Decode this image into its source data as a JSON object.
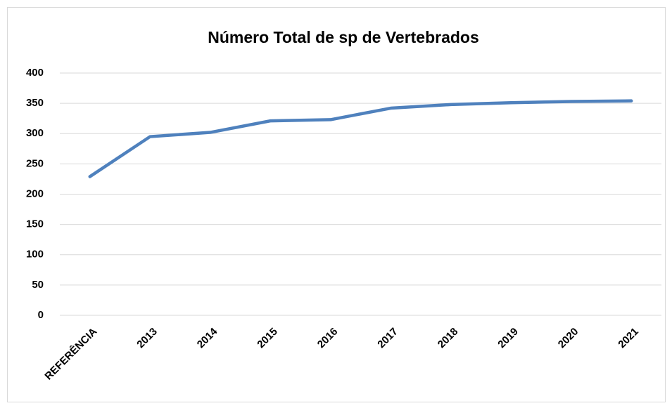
{
  "chart_data": {
    "type": "line",
    "title": "Número Total de sp de Vertebrados",
    "categories": [
      "REFERÊNCIA",
      "2013",
      "2014",
      "2015",
      "2016",
      "2017",
      "2018",
      "2019",
      "2020",
      "2021"
    ],
    "series": [
      {
        "name": "Número Total de sp de Vertebrados",
        "color": "#4f81bd",
        "values": [
          229,
          295,
          302,
          321,
          323,
          342,
          348,
          351,
          353,
          354
        ]
      }
    ],
    "ylim": [
      0,
      400
    ],
    "yticks": [
      0,
      50,
      100,
      150,
      200,
      250,
      300,
      350,
      400
    ],
    "grid": true
  }
}
